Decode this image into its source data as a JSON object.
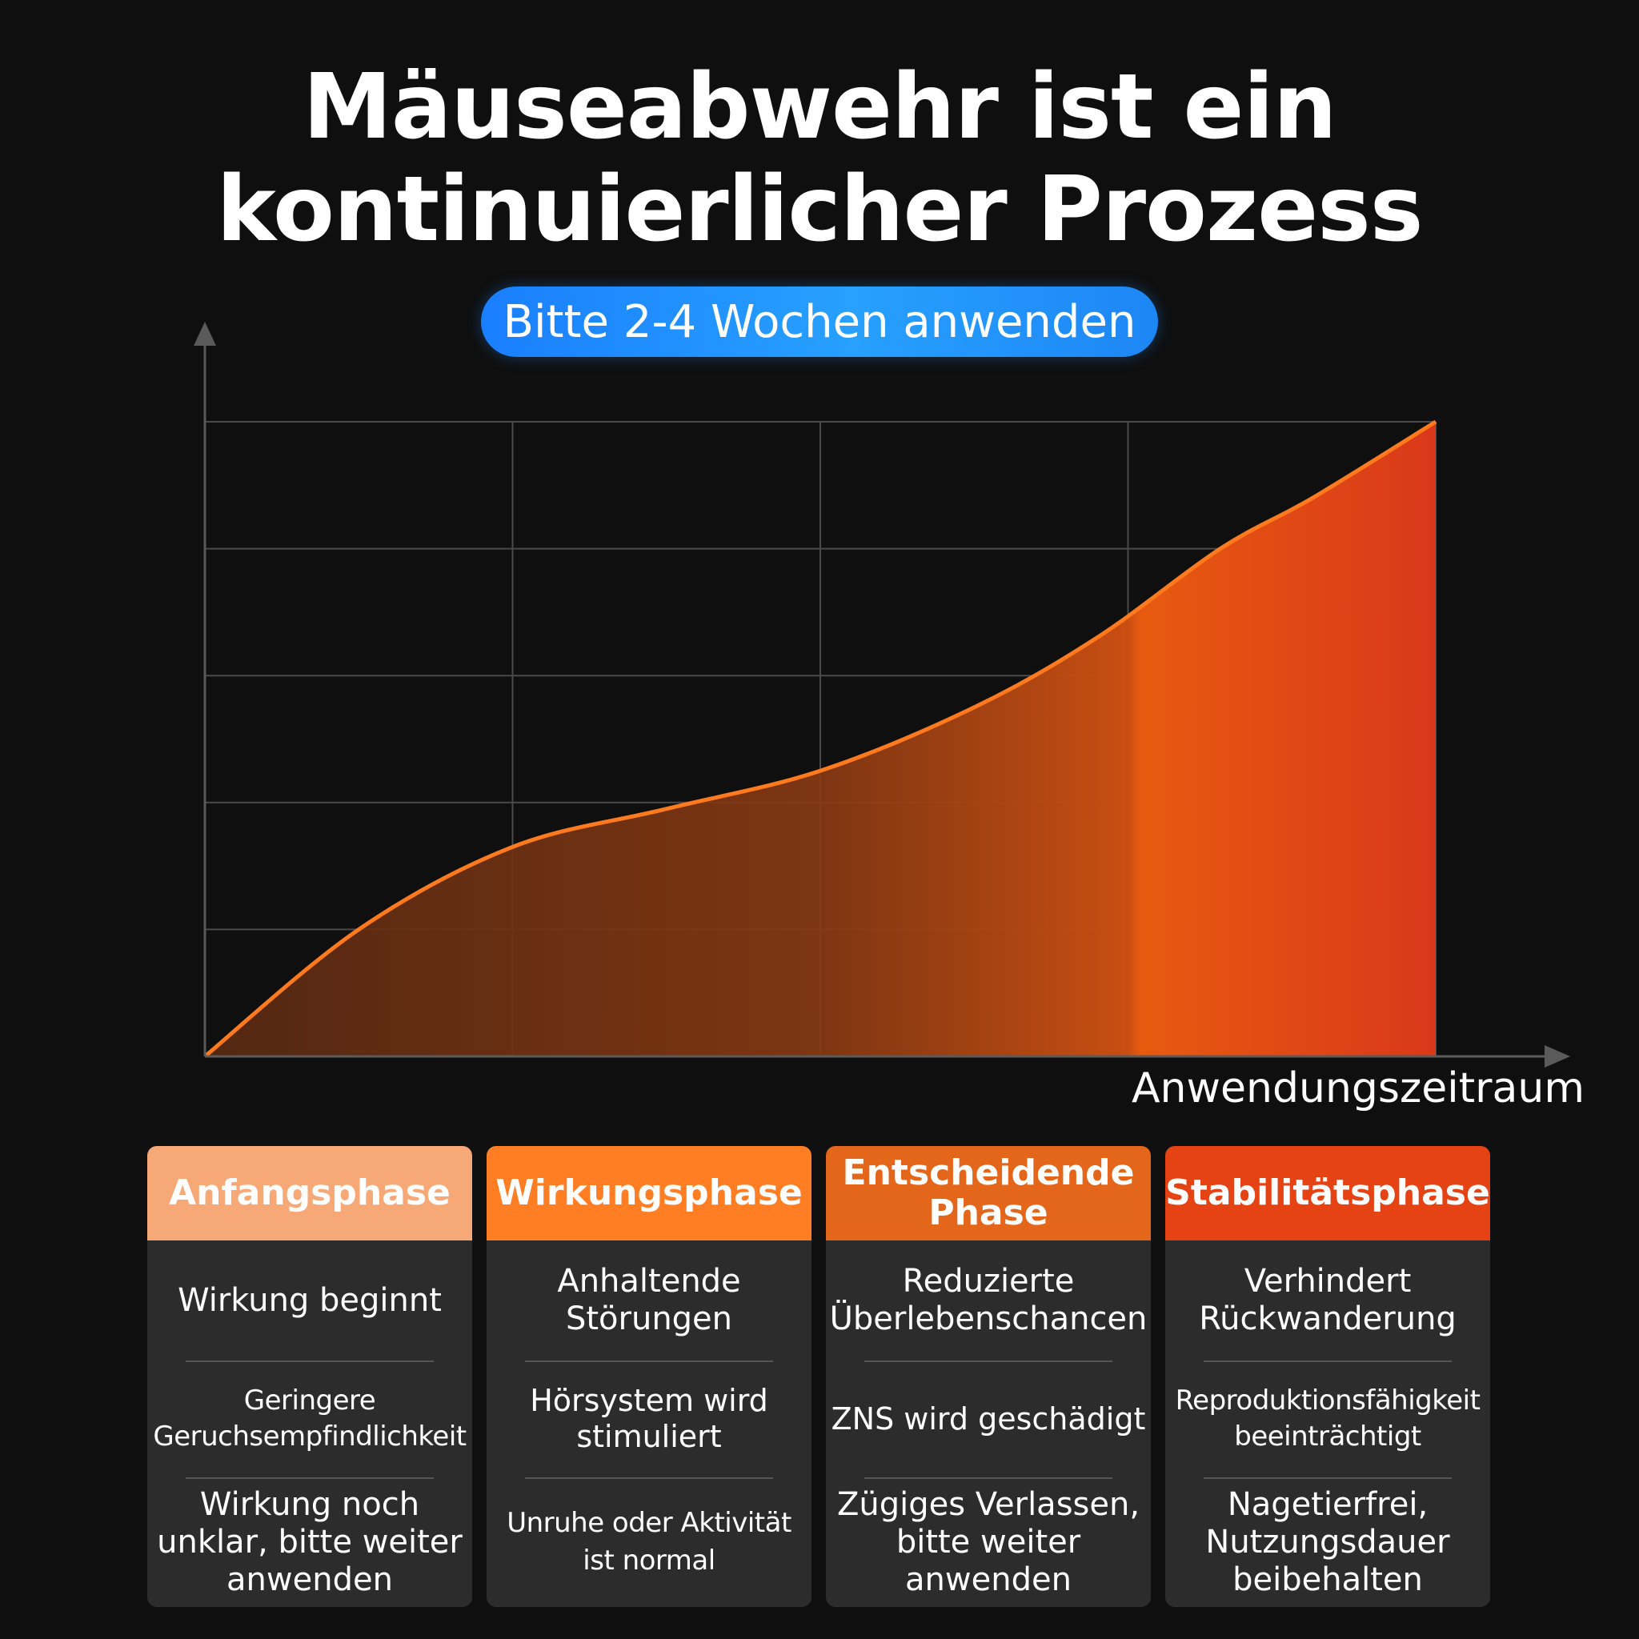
{
  "title": {
    "line1": "Mäuseabwehr ist ein",
    "line2": "kontinuierlicher Prozess"
  },
  "badge": "Bitte 2-4 Wochen anwenden",
  "chart_data": {
    "type": "area",
    "title": "Mäuseabwehr ist ein kontinuierlicher Prozess",
    "xlabel": "Anwendungszeitraum",
    "ylabel": "",
    "x": [
      0,
      0.5,
      1.0,
      1.5,
      2.0,
      2.5,
      2.9,
      3.3,
      3.6,
      4.0
    ],
    "values": [
      0,
      2.0,
      3.3,
      3.9,
      4.5,
      5.5,
      6.6,
      8.0,
      8.8,
      10.0
    ],
    "xlim": [
      0,
      4
    ],
    "ylim": [
      0,
      10
    ],
    "grid": true,
    "legend": "none",
    "colors": {
      "line": "#ff7a1e",
      "fill_start": "#5a2a12",
      "fill_end": "#e8401a"
    }
  },
  "phases": [
    {
      "name": "Anfangsphase",
      "color": "#f7a877",
      "items": [
        "Wirkung beginnt",
        "Geringere Geruchsempfindlichkeit",
        "Wirkung noch unklar, bitte weiter anwenden"
      ]
    },
    {
      "name": "Wirkungsphase",
      "color": "#ff7e23",
      "items": [
        "Anhaltende Störungen",
        "Hörsystem wird stimuliert",
        "Unruhe oder Aktivität ist normal"
      ]
    },
    {
      "name": "Entscheidende Phase",
      "color": "#e4661a",
      "items": [
        "Reduzierte Überlebenschancen",
        "ZNS wird geschädigt",
        "Zügiges Verlassen, bitte weiter anwenden"
      ]
    },
    {
      "name": "Stabilitätsphase",
      "color": "#e64314",
      "items": [
        "Verhindert Rückwanderung",
        "Reproduktionsfähigkeit beeinträchtigt",
        "Nagetierfrei, Nutzungsdauer beibehalten"
      ]
    }
  ]
}
